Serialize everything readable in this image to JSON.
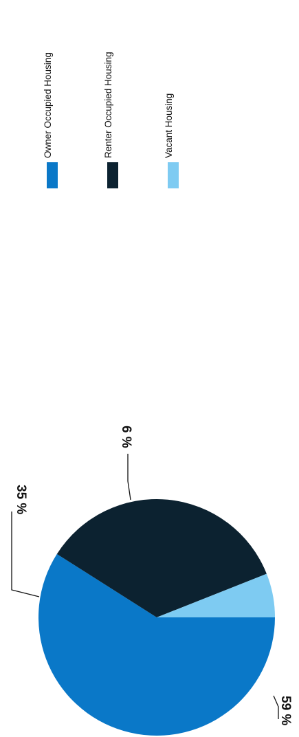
{
  "chart_data": {
    "type": "pie",
    "orientation": "rotated-90-clockwise",
    "categories": [
      "Owner Occupied Housing",
      "Renter Occupied Housing",
      "Vacant Housing"
    ],
    "values": [
      59,
      35,
      6
    ],
    "data_labels": [
      "59 %",
      "35 %",
      "6 %"
    ],
    "colors": [
      "#0a78c8",
      "#0c2230",
      "#7ecbf2"
    ],
    "legend": {
      "position": "right",
      "entries": [
        "Owner Occupied Housing",
        "Renter Occupied Housing",
        "Vacant Housing"
      ]
    },
    "title": "",
    "grid": false
  }
}
